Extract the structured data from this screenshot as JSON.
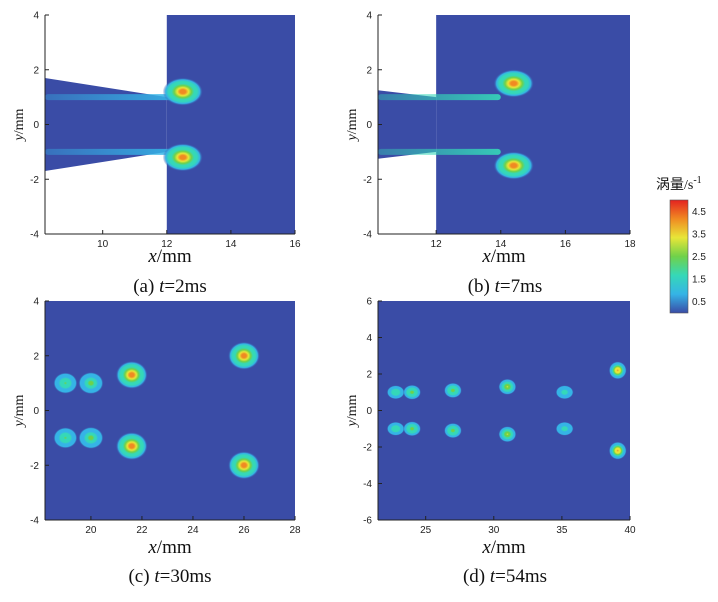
{
  "chart_data": [
    {
      "type": "heatmap",
      "caption": {
        "label": "(a) ",
        "t": "t",
        "value": "=2ms"
      },
      "xlabel": {
        "var": "x",
        "unit": "/mm"
      },
      "ylabel": {
        "var": "y",
        "unit": "/mm"
      },
      "xlim": [
        8.2,
        16
      ],
      "ylim": [
        -4,
        4
      ],
      "xticks": [
        10,
        12,
        14,
        16
      ],
      "yticks": [
        -4,
        -2,
        0,
        2,
        4
      ],
      "nozzle_exit_x": 12,
      "inlet_half_width_at_left": 1.7,
      "fluid_region": "x >= 12",
      "vortices": [
        {
          "x": 12.5,
          "y": 1.2,
          "vorticity": 4.5
        },
        {
          "x": 12.5,
          "y": -1.2,
          "vorticity": 4.5
        }
      ],
      "shear_layers": [
        {
          "from_x": 8.2,
          "to_x": 12.2,
          "y": 1.0,
          "vorticity": 0.8
        },
        {
          "from_x": 8.2,
          "to_x": 12.2,
          "y": -1.0,
          "vorticity": 0.8
        }
      ]
    },
    {
      "type": "heatmap",
      "caption": {
        "label": "(b) ",
        "t": "t",
        "value": "=7ms"
      },
      "xlabel": {
        "var": "x",
        "unit": "/mm"
      },
      "ylabel": {
        "var": "y",
        "unit": "/mm"
      },
      "xlim": [
        10.2,
        18
      ],
      "ylim": [
        -4,
        4
      ],
      "xticks": [
        12,
        14,
        16,
        18
      ],
      "yticks": [
        -4,
        -2,
        0,
        2,
        4
      ],
      "nozzle_exit_x": 12,
      "inlet_half_width_at_left": 1.25,
      "fluid_region": "x >= 12",
      "vortices": [
        {
          "x": 14.4,
          "y": 1.5,
          "vorticity": 4.5
        },
        {
          "x": 14.4,
          "y": -1.5,
          "vorticity": 4.5
        }
      ],
      "shear_layers": [
        {
          "from_x": 10.2,
          "to_x": 14.0,
          "y": 1.0,
          "vorticity": 1.8
        },
        {
          "from_x": 10.2,
          "to_x": 14.0,
          "y": -1.0,
          "vorticity": 1.8
        }
      ]
    },
    {
      "type": "heatmap",
      "caption": {
        "label": "(c) ",
        "t": "t",
        "value": "=30ms"
      },
      "xlabel": {
        "var": "x",
        "unit": "/mm"
      },
      "ylabel": {
        "var": "y",
        "unit": "/mm"
      },
      "xlim": [
        18.2,
        28
      ],
      "ylim": [
        -4,
        4
      ],
      "xticks": [
        20,
        22,
        24,
        26,
        28
      ],
      "yticks": [
        -4,
        -2,
        0,
        2,
        4
      ],
      "vortices": [
        {
          "x": 19.0,
          "y": 1.0,
          "vorticity": 2.2
        },
        {
          "x": 20.0,
          "y": 1.0,
          "vorticity": 2.5
        },
        {
          "x": 21.6,
          "y": 1.3,
          "vorticity": 4.5
        },
        {
          "x": 26.0,
          "y": 2.0,
          "vorticity": 4.5
        },
        {
          "x": 19.0,
          "y": -1.0,
          "vorticity": 2.2
        },
        {
          "x": 20.0,
          "y": -1.0,
          "vorticity": 2.5
        },
        {
          "x": 21.6,
          "y": -1.3,
          "vorticity": 4.5
        },
        {
          "x": 26.0,
          "y": -2.0,
          "vorticity": 4.5
        }
      ]
    },
    {
      "type": "heatmap",
      "caption": {
        "label": "(d) ",
        "t": "t",
        "value": "=54ms"
      },
      "xlabel": {
        "var": "x",
        "unit": "/mm"
      },
      "ylabel": {
        "var": "y",
        "unit": "/mm"
      },
      "xlim": [
        21.5,
        40
      ],
      "ylim": [
        -6,
        6
      ],
      "xticks": [
        25,
        30,
        35,
        40
      ],
      "yticks": [
        -6,
        -4,
        -2,
        0,
        2,
        4,
        6
      ],
      "vortices": [
        {
          "x": 22.8,
          "y": 1.0,
          "vorticity": 2.0
        },
        {
          "x": 24.0,
          "y": 1.0,
          "vorticity": 2.6
        },
        {
          "x": 27.0,
          "y": 1.1,
          "vorticity": 2.8
        },
        {
          "x": 31.0,
          "y": 1.3,
          "vorticity": 3.2
        },
        {
          "x": 35.2,
          "y": 1.0,
          "vorticity": 1.8
        },
        {
          "x": 39.1,
          "y": 2.2,
          "vorticity": 4.2
        },
        {
          "x": 22.8,
          "y": -1.0,
          "vorticity": 2.0
        },
        {
          "x": 24.0,
          "y": -1.0,
          "vorticity": 2.6
        },
        {
          "x": 27.0,
          "y": -1.1,
          "vorticity": 2.8
        },
        {
          "x": 31.0,
          "y": -1.3,
          "vorticity": 3.2
        },
        {
          "x": 35.2,
          "y": -1.0,
          "vorticity": 1.8
        },
        {
          "x": 39.1,
          "y": -2.2,
          "vorticity": 4.2
        }
      ]
    }
  ],
  "colorbar": {
    "title": "涡量/s",
    "title_exp": "-1",
    "ticks": [
      "4.5",
      "3.5",
      "2.5",
      "1.5",
      "0.5"
    ],
    "min": 0.0,
    "max": 5.0,
    "colors": [
      "#3a4ca6",
      "#35b4e6",
      "#35d8b8",
      "#6fd14a",
      "#e8e638",
      "#f08a22",
      "#e42220"
    ]
  },
  "colors": {
    "background_flow": "#3a4ca6",
    "axis": "#222222"
  }
}
